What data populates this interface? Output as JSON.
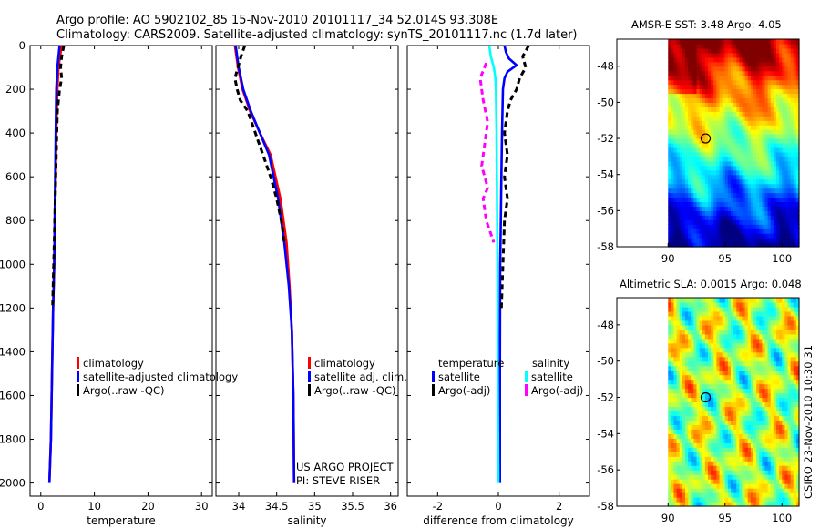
{
  "title_line1": "Argo profile: AO 5902102_85 15-Nov-2010 20101117_34 52.014S 93.308E",
  "title_line2": "Climatology: CARS2009. Satellite-adjusted climatology: synTS_20101117.nc (1.7d later)",
  "colors": {
    "climatology": "#ff0000",
    "satellite": "#0000ff",
    "argo": "#000000",
    "salinity_satellite": "#00ffff",
    "salinity_argo": "#ff00ff"
  },
  "chart_data": [
    {
      "id": "temperature",
      "type": "line",
      "xlabel": "temperature",
      "ylabel": "",
      "xlim": [
        -2,
        32
      ],
      "ylim": [
        2060,
        0
      ],
      "xticks": [
        0,
        10,
        20,
        30
      ],
      "yticks": [
        0,
        200,
        400,
        600,
        800,
        1000,
        1200,
        1400,
        1600,
        1800,
        2000
      ],
      "legend": [
        "climatology",
        "satellite-adjusted climatology",
        "Argo(..raw -QC)"
      ],
      "series": [
        {
          "name": "climatology",
          "style": "solid",
          "color": "#ff0000",
          "x": [
            3.9,
            3.6,
            3.3,
            3.1,
            2.9,
            2.8,
            2.6,
            2.5,
            2.3,
            2.1,
            1.9,
            1.6
          ],
          "y": [
            0,
            50,
            100,
            200,
            400,
            600,
            800,
            1000,
            1200,
            1500,
            1800,
            2000
          ]
        },
        {
          "name": "satellite-adjusted climatology",
          "style": "solid",
          "color": "#0000ff",
          "x": [
            3.5,
            3.3,
            3.1,
            2.9,
            2.8,
            2.7,
            2.6,
            2.5,
            2.3,
            2.1,
            1.9,
            1.6
          ],
          "y": [
            0,
            50,
            100,
            200,
            400,
            600,
            800,
            1000,
            1200,
            1500,
            1800,
            2000
          ]
        },
        {
          "name": "Argo(..raw -QC)",
          "style": "dashed",
          "color": "#000000",
          "x": [
            4.3,
            3.9,
            3.7,
            3.9,
            3.5,
            3.3,
            3.1,
            3.0,
            2.9,
            2.8,
            2.7,
            2.6,
            2.5,
            2.4,
            2.3,
            2.2
          ],
          "y": [
            0,
            50,
            100,
            150,
            200,
            250,
            300,
            400,
            500,
            600,
            700,
            800,
            900,
            1000,
            1100,
            1200
          ]
        }
      ]
    },
    {
      "id": "salinity",
      "type": "line",
      "xlabel": "salinity",
      "ylabel": "",
      "xlim": [
        33.7,
        36.1
      ],
      "ylim": [
        2060,
        0
      ],
      "xticks": [
        34,
        34.5,
        35,
        35.5,
        36
      ],
      "yticks": [
        0,
        200,
        400,
        600,
        800,
        1000,
        1200,
        1400,
        1600,
        1800,
        2000
      ],
      "legend": [
        "climatology",
        "satellite adj. clim.",
        "Argo(..raw -QC)"
      ],
      "annotations": [
        "US ARGO PROJECT",
        "PI: STEVE RISER"
      ],
      "series": [
        {
          "name": "climatology",
          "style": "solid",
          "color": "#ff0000",
          "x": [
            33.95,
            33.97,
            33.99,
            34.05,
            34.15,
            34.28,
            34.42,
            34.55,
            34.63,
            34.67,
            34.7,
            34.72,
            34.73
          ],
          "y": [
            0,
            50,
            100,
            200,
            300,
            400,
            500,
            700,
            900,
            1100,
            1300,
            1600,
            2000
          ]
        },
        {
          "name": "satellite adj. clim.",
          "style": "solid",
          "color": "#0000ff",
          "x": [
            33.96,
            33.98,
            34.0,
            34.06,
            34.16,
            34.28,
            34.4,
            34.52,
            34.6,
            34.66,
            34.7,
            34.72,
            34.73
          ],
          "y": [
            0,
            50,
            100,
            200,
            300,
            400,
            500,
            700,
            900,
            1100,
            1300,
            1600,
            2000
          ]
        },
        {
          "name": "Argo(..raw -QC)",
          "style": "dashed",
          "color": "#000000",
          "x": [
            34.08,
            34.03,
            33.99,
            33.95,
            33.98,
            34.02,
            34.12,
            34.22,
            34.32,
            34.42,
            34.5,
            34.56,
            34.6
          ],
          "y": [
            0,
            50,
            100,
            150,
            200,
            250,
            300,
            400,
            500,
            600,
            700,
            800,
            900
          ]
        }
      ]
    },
    {
      "id": "difference",
      "type": "line",
      "xlabel": "difference from climatology",
      "ylabel": "",
      "xlim": [
        -3,
        3
      ],
      "ylim": [
        2060,
        0
      ],
      "xticks": [
        -2,
        0,
        2
      ],
      "yticks": [
        0,
        200,
        400,
        600,
        800,
        1000,
        1200,
        1400,
        1600,
        1800,
        2000
      ],
      "legend_headings": [
        "temperature",
        "salinity"
      ],
      "legend": [
        "satellite",
        "Argo(-adj)",
        "satellite",
        "Argo(-adj)"
      ],
      "series": [
        {
          "name": "temperature satellite",
          "style": "solid",
          "color": "#0000ff",
          "x": [
            0.2,
            0.25,
            0.35,
            0.6,
            0.3,
            0.2,
            0.15,
            0.12,
            0.1,
            0.08,
            0.06,
            0.05,
            0.05
          ],
          "y": [
            0,
            30,
            60,
            90,
            120,
            150,
            200,
            400,
            600,
            800,
            1000,
            1500,
            2000
          ]
        },
        {
          "name": "temperature Argo(-adj)",
          "style": "dashed",
          "color": "#000000",
          "x": [
            1.0,
            0.8,
            0.9,
            0.7,
            0.6,
            0.4,
            0.3,
            0.2,
            0.3,
            0.2,
            0.3,
            0.2,
            0.15,
            0.1
          ],
          "y": [
            0,
            50,
            100,
            150,
            200,
            250,
            300,
            400,
            500,
            600,
            700,
            800,
            1000,
            1200
          ]
        },
        {
          "name": "salinity satellite",
          "style": "solid",
          "color": "#00ffff",
          "x": [
            -0.3,
            -0.25,
            -0.15,
            -0.1,
            -0.08,
            -0.06,
            -0.05,
            -0.04,
            -0.03,
            -0.02,
            0.0
          ],
          "y": [
            0,
            50,
            100,
            150,
            200,
            400,
            600,
            800,
            1000,
            1500,
            2000
          ]
        },
        {
          "name": "salinity Argo(-adj)",
          "style": "dashed",
          "color": "#ff00ff",
          "x": [
            -0.4,
            -0.6,
            -0.5,
            -0.35,
            -0.45,
            -0.55,
            -0.35,
            -0.5,
            -0.4,
            -0.15
          ],
          "y": [
            80,
            150,
            250,
            350,
            450,
            550,
            650,
            700,
            800,
            900
          ]
        }
      ]
    },
    {
      "id": "sst_map",
      "type": "heatmap",
      "title": "AMSR-E SST: 3.48 Argo: 4.05",
      "xlim": [
        85.5,
        101.5
      ],
      "ylim": [
        -58,
        -46.5
      ],
      "xticks": [
        90,
        95,
        100
      ],
      "yticks": [
        -48,
        -50,
        -52,
        -54,
        -56,
        -58
      ],
      "data_lon_range": [
        90,
        101.5
      ],
      "marker": {
        "lon": 93.3,
        "lat": -52.0
      }
    },
    {
      "id": "sla_map",
      "type": "heatmap",
      "title": "Altimetric SLA: 0.0015 Argo: 0.048",
      "xlim": [
        85.5,
        101.5
      ],
      "ylim": [
        -58,
        -46.5
      ],
      "xticks": [
        90,
        95,
        100
      ],
      "yticks": [
        -48,
        -50,
        -52,
        -54,
        -56,
        -58
      ],
      "data_lon_range": [
        90,
        101.5
      ],
      "marker": {
        "lon": 93.3,
        "lat": -52.0
      }
    }
  ],
  "side_label": "CSIRO 23-Nov-2010 10:30:31"
}
